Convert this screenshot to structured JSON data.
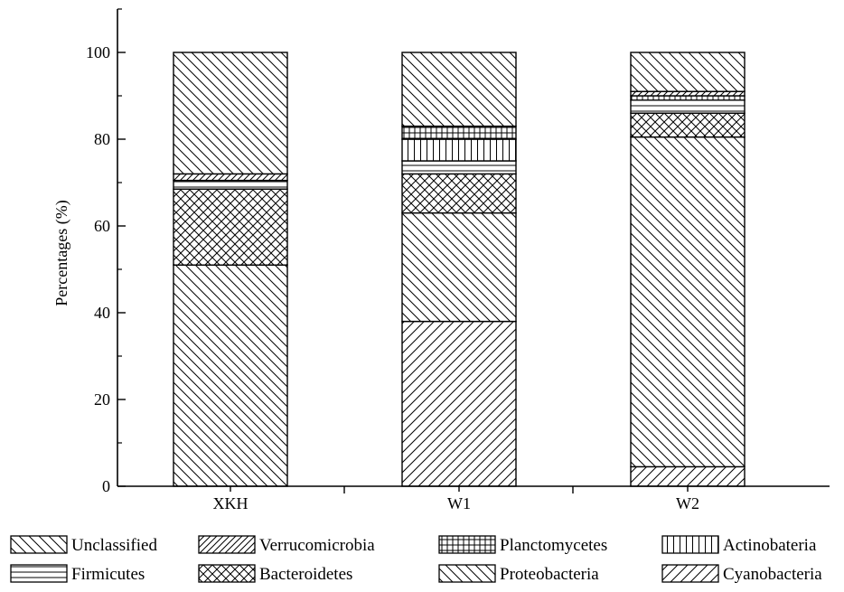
{
  "chart_data": {
    "type": "bar",
    "stacked": true,
    "title": "",
    "xlabel": "",
    "ylabel": "Percentages (%)",
    "ylim": [
      0,
      110
    ],
    "yticks": [
      0,
      20,
      40,
      60,
      80,
      100
    ],
    "grid": false,
    "legend_position": "bottom",
    "categories": [
      "XKH",
      "W1",
      "W2"
    ],
    "series": [
      {
        "name": "Cyanobacteria",
        "pattern": "diag-right",
        "values": [
          0,
          38,
          4.5
        ]
      },
      {
        "name": "Proteobacteria",
        "pattern": "diag-left",
        "values": [
          51,
          25,
          76
        ]
      },
      {
        "name": "Bacteroidetes",
        "pattern": "crosshatch",
        "values": [
          17.5,
          9,
          5.5
        ]
      },
      {
        "name": "Firmicutes",
        "pattern": "horizontal",
        "values": [
          2,
          3,
          3
        ]
      },
      {
        "name": "Actinobateria",
        "pattern": "vertical",
        "values": [
          0,
          5,
          0
        ]
      },
      {
        "name": "Planctomycetes",
        "pattern": "grid",
        "values": [
          0,
          3,
          1
        ]
      },
      {
        "name": "Verrucomicrobia",
        "pattern": "diag-right-dense",
        "values": [
          1.5,
          0,
          1
        ]
      },
      {
        "name": "Unclassified",
        "pattern": "diag-left",
        "values": [
          28,
          17,
          9
        ]
      }
    ],
    "legend_order": [
      "Unclassified",
      "Verrucomicrobia",
      "Planctomycetes",
      "Actinobateria",
      "Firmicutes",
      "Bacteroidetes",
      "Proteobacteria",
      "Cyanobacteria"
    ]
  }
}
